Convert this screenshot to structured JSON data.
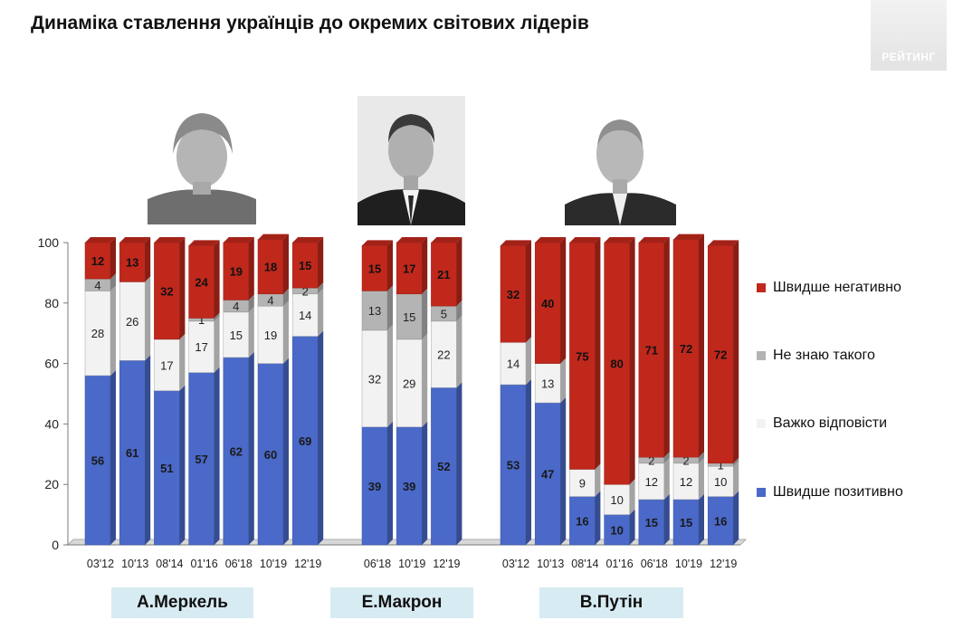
{
  "title": "Динаміка ставлення українців до окремих світових лідерів",
  "brand": "РЕЙТИНГ",
  "colors": {
    "negative": "#c0281c",
    "dont_know": "#b4b4b4",
    "hard_to_say": "#f2f2f2",
    "positive": "#4a69c8"
  },
  "leaders": [
    {
      "name": "А.Меркель",
      "portrait": "merkel-portrait"
    },
    {
      "name": "Е.Макрон",
      "portrait": "macron-portrait"
    },
    {
      "name": "В.Путін",
      "portrait": "putin-portrait"
    }
  ],
  "legend": [
    {
      "label": "Швидше негативно",
      "color": "#c0281c"
    },
    {
      "label": "Не знаю такого",
      "color": "#b4b4b4"
    },
    {
      "label": "Важко відповісти",
      "color": "#f2f2f2"
    },
    {
      "label": "Швидше позитивно",
      "color": "#4a69c8"
    }
  ],
  "chart_data": {
    "type": "bar",
    "stacked": true,
    "ylim": [
      0,
      100
    ],
    "yticks": [
      0,
      20,
      40,
      60,
      80,
      100
    ],
    "groups": [
      {
        "leader": "А.Меркель",
        "categories": [
          "03'12",
          "10'13",
          "08'14",
          "01'16",
          "06'18",
          "10'19",
          "12'19"
        ],
        "series": [
          {
            "name": "Швидше позитивно",
            "values": [
              56,
              61,
              51,
              57,
              62,
              60,
              69
            ]
          },
          {
            "name": "Важко відповісти",
            "values": [
              28,
              26,
              17,
              17,
              15,
              19,
              14
            ]
          },
          {
            "name": "Не знаю такого",
            "values": [
              4,
              0,
              0,
              1,
              4,
              4,
              2
            ]
          },
          {
            "name": "Швидше негативно",
            "values": [
              12,
              13,
              32,
              24,
              19,
              18,
              15
            ]
          }
        ]
      },
      {
        "leader": "Е.Макрон",
        "categories": [
          "06'18",
          "10'19",
          "12'19"
        ],
        "series": [
          {
            "name": "Швидше позитивно",
            "values": [
              39,
              39,
              52
            ]
          },
          {
            "name": "Важко відповісти",
            "values": [
              32,
              29,
              22
            ]
          },
          {
            "name": "Не знаю такого",
            "values": [
              13,
              15,
              5
            ]
          },
          {
            "name": "Швидше негативно",
            "values": [
              15,
              17,
              21
            ]
          }
        ]
      },
      {
        "leader": "В.Путін",
        "categories": [
          "03'12",
          "10'13",
          "08'14",
          "01'16",
          "06'18",
          "10'19",
          "12'19"
        ],
        "series": [
          {
            "name": "Швидше позитивно",
            "values": [
              53,
              47,
              16,
              10,
              15,
              15,
              16
            ]
          },
          {
            "name": "Важко відповісти",
            "values": [
              14,
              13,
              9,
              10,
              12,
              12,
              10
            ]
          },
          {
            "name": "Не знаю такого",
            "values": [
              0,
              0,
              0,
              0,
              2,
              2,
              1
            ]
          },
          {
            "name": "Швидше негативно",
            "values": [
              32,
              40,
              75,
              80,
              71,
              72,
              72
            ]
          }
        ]
      }
    ]
  }
}
